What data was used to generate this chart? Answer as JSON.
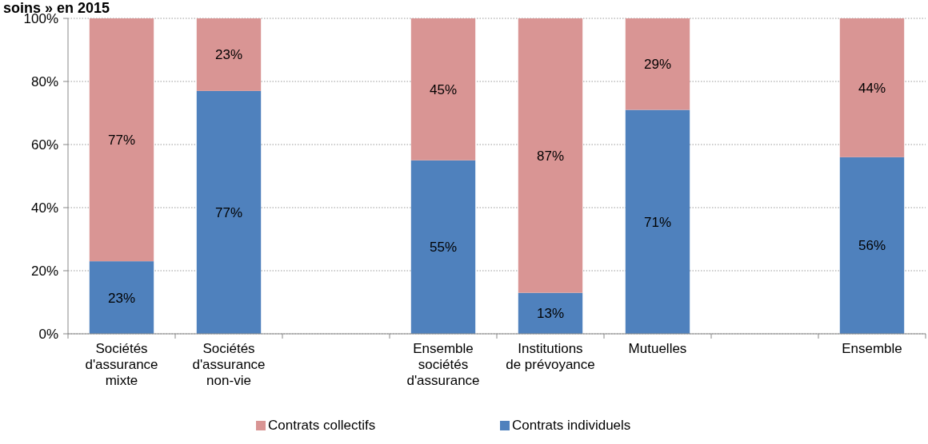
{
  "chart_data": {
    "type": "bar",
    "title": "soins » en 2015",
    "stacked": true,
    "categories": [
      "Sociétés d'assurance mixte",
      "Sociétés d'assurance non-vie",
      null,
      "Ensemble sociétés d'assurance",
      "Institutions de prévoyance",
      "Mutuelles",
      null,
      "Ensemble"
    ],
    "series": [
      {
        "name": "Contrats individuels",
        "color": "#4f81bd",
        "values": [
          23,
          77,
          null,
          55,
          13,
          71,
          null,
          56
        ],
        "value_labels": [
          "23%",
          "77%",
          null,
          "55%",
          "13%",
          "71%",
          null,
          "56%"
        ]
      },
      {
        "name": "Contrats collectifs",
        "color": "#d99594",
        "values": [
          77,
          23,
          null,
          45,
          87,
          29,
          null,
          44
        ],
        "value_labels": [
          "77%",
          "23%",
          null,
          "45%",
          "87%",
          "29%",
          null,
          "44%"
        ]
      }
    ],
    "ylim": [
      0,
      100
    ],
    "yticks": [
      {
        "value": 0,
        "label": "0%"
      },
      {
        "value": 20,
        "label": "20%"
      },
      {
        "value": 40,
        "label": "40%"
      },
      {
        "value": 60,
        "label": "60%"
      },
      {
        "value": 80,
        "label": "80%"
      },
      {
        "value": 100,
        "label": "100%"
      }
    ],
    "grid": "y",
    "legend": "bottom"
  }
}
